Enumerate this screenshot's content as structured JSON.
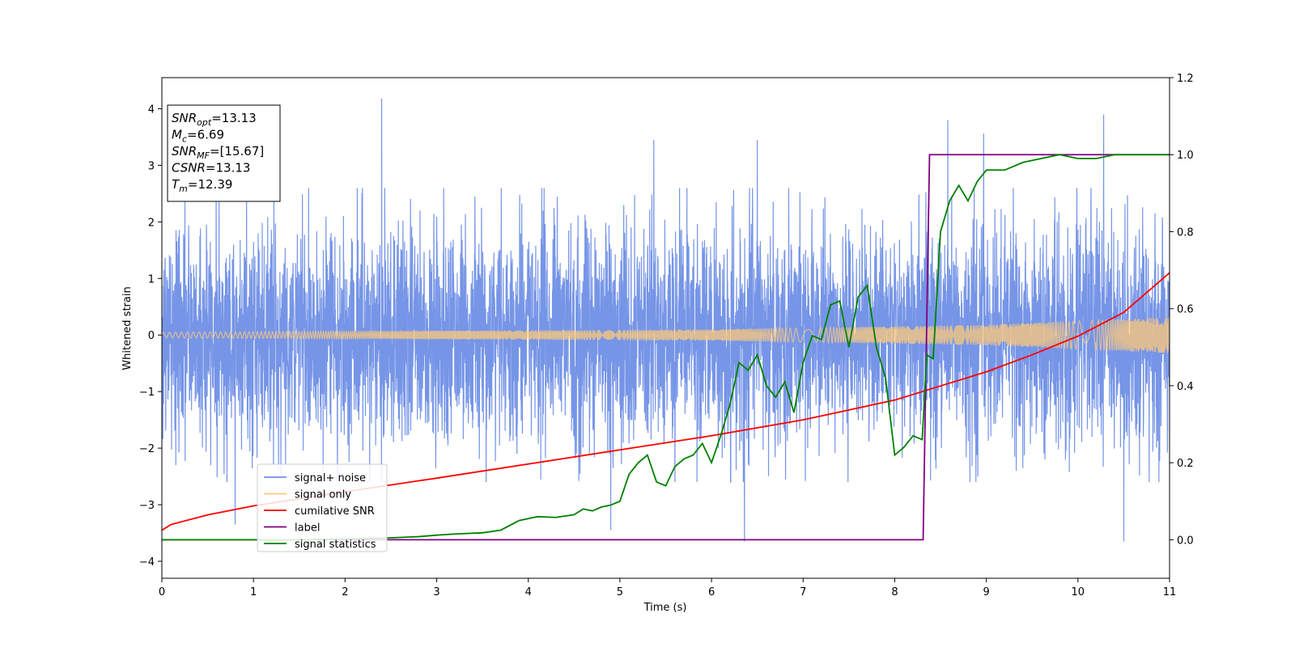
{
  "chart_data": {
    "type": "line",
    "xlabel": "Time (s)",
    "ylabel": "Whitened strain",
    "xlim": [
      0,
      11
    ],
    "ylim": [
      -4.3,
      4.55
    ],
    "y2lim": [
      -0.1,
      1.2
    ],
    "x_ticks": [
      "0",
      "1",
      "2",
      "3",
      "4",
      "5",
      "6",
      "7",
      "8",
      "9",
      "10",
      "11"
    ],
    "y_ticks": [
      "−4",
      "−3",
      "−2",
      "−1",
      "0",
      "1",
      "2",
      "3",
      "4"
    ],
    "y2_ticks": [
      "0.0",
      "0.2",
      "0.4",
      "0.6",
      "0.8",
      "1.0",
      "1.2"
    ],
    "grid": false,
    "legend_position": "lower-left",
    "legend": [
      {
        "label": "signal+ noise",
        "color": "#6f8fe6"
      },
      {
        "label": "signal only",
        "color": "#ffc97a"
      },
      {
        "label": "cumilative SNR",
        "color": "#ff0000"
      },
      {
        "label": "label",
        "color": "#800080"
      },
      {
        "label": "signal statistics",
        "color": "#008000"
      }
    ],
    "annotation": [
      {
        "base": "SNR",
        "sub": "opt",
        "value": "=13.13"
      },
      {
        "base": "M",
        "sub": "c",
        "value": "=6.69"
      },
      {
        "base": "SNR",
        "sub": "MF",
        "value": "=[15.67]"
      },
      {
        "base": "CSNR",
        "sub": "",
        "value": "=13.13"
      },
      {
        "base": "T",
        "sub": "m",
        "value": "=12.39"
      }
    ],
    "series": [
      {
        "name": "signal+ noise",
        "axis": "left",
        "color": "#6f8fe6",
        "note_noise_band": [
          -2.0,
          2.0
        ],
        "spikes": [
          {
            "x": 2.4,
            "y": 4.18
          },
          {
            "x": 5.37,
            "y": 3.45
          },
          {
            "x": 6.5,
            "y": 3.45
          },
          {
            "x": 8.58,
            "y": 3.8
          },
          {
            "x": 8.97,
            "y": 3.56
          },
          {
            "x": 10.28,
            "y": 3.9
          },
          {
            "x": 0.8,
            "y": -3.35
          },
          {
            "x": 4.9,
            "y": -3.45
          },
          {
            "x": 6.36,
            "y": -3.65
          },
          {
            "x": 10.5,
            "y": -3.65
          }
        ]
      },
      {
        "name": "signal only",
        "axis": "left",
        "color": "#ffc97a",
        "amplitude": [
          {
            "x": 0,
            "y": 0.05
          },
          {
            "x": 6,
            "y": 0.1
          },
          {
            "x": 9,
            "y": 0.18
          },
          {
            "x": 11,
            "y": 0.32
          }
        ]
      },
      {
        "name": "cumilative SNR",
        "axis": "left",
        "color": "#ff0000",
        "x": [
          0,
          0.1,
          0.5,
          1,
          2,
          3,
          4,
          5,
          6,
          7,
          8,
          8.5,
          9,
          9.5,
          10,
          10.5,
          11
        ],
        "y": [
          -3.45,
          -3.35,
          -3.18,
          -3.02,
          -2.77,
          -2.53,
          -2.28,
          -2.03,
          -1.78,
          -1.5,
          -1.15,
          -0.9,
          -0.65,
          -0.35,
          -0.02,
          0.4,
          1.1
        ]
      },
      {
        "name": "label",
        "axis": "right",
        "color": "#800080",
        "x": [
          0,
          8.31,
          8.38,
          11
        ],
        "y": [
          0,
          0,
          1,
          1
        ]
      },
      {
        "name": "signal statistics",
        "axis": "right",
        "color": "#008000",
        "x": [
          0,
          0.5,
          1,
          1.5,
          2,
          2.5,
          2.8,
          3.0,
          3.2,
          3.5,
          3.7,
          3.9,
          4.0,
          4.1,
          4.3,
          4.5,
          4.6,
          4.7,
          4.8,
          4.9,
          5.0,
          5.1,
          5.2,
          5.3,
          5.4,
          5.5,
          5.6,
          5.7,
          5.8,
          5.9,
          6.0,
          6.1,
          6.2,
          6.3,
          6.4,
          6.5,
          6.6,
          6.7,
          6.8,
          6.9,
          7.0,
          7.1,
          7.2,
          7.3,
          7.4,
          7.5,
          7.6,
          7.7,
          7.8,
          7.9,
          8.0,
          8.1,
          8.2,
          8.3,
          8.35,
          8.42,
          8.5,
          8.6,
          8.7,
          8.8,
          8.9,
          9.0,
          9.2,
          9.4,
          9.6,
          9.8,
          10.0,
          10.2,
          10.4,
          10.6,
          11.0
        ],
        "y": [
          0.0,
          0.0,
          0.0,
          0.0,
          0.002,
          0.005,
          0.008,
          0.012,
          0.015,
          0.018,
          0.025,
          0.05,
          0.055,
          0.06,
          0.058,
          0.065,
          0.08,
          0.075,
          0.085,
          0.09,
          0.1,
          0.17,
          0.2,
          0.22,
          0.15,
          0.14,
          0.19,
          0.21,
          0.22,
          0.25,
          0.2,
          0.27,
          0.35,
          0.46,
          0.44,
          0.48,
          0.4,
          0.37,
          0.41,
          0.33,
          0.46,
          0.53,
          0.52,
          0.61,
          0.62,
          0.5,
          0.63,
          0.66,
          0.5,
          0.42,
          0.22,
          0.24,
          0.27,
          0.26,
          0.48,
          0.47,
          0.8,
          0.88,
          0.92,
          0.88,
          0.93,
          0.96,
          0.96,
          0.98,
          0.99,
          1.0,
          0.99,
          0.99,
          1.0,
          1.0,
          1.0
        ]
      }
    ]
  }
}
